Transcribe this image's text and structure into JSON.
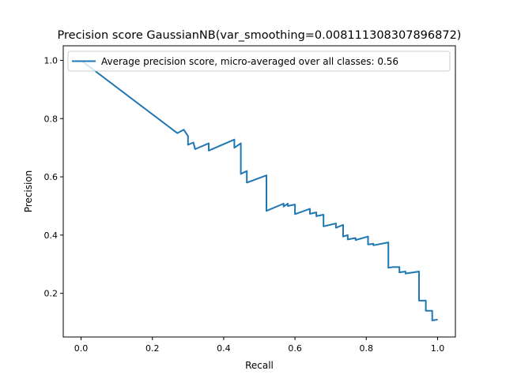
{
  "chart_data": {
    "type": "line",
    "title": "Precision score GaussianNB(var_smoothing=0.008111308307896872)",
    "xlabel": "Recall",
    "ylabel": "Precision",
    "xlim": [
      -0.05,
      1.05
    ],
    "ylim": [
      0.05,
      1.05
    ],
    "xticks": [
      0.0,
      0.2,
      0.4,
      0.6,
      0.8,
      1.0
    ],
    "xtick_labels": [
      "0.0",
      "0.2",
      "0.4",
      "0.6",
      "0.8",
      "1.0"
    ],
    "yticks": [
      0.2,
      0.4,
      0.6,
      0.8,
      1.0
    ],
    "ytick_labels": [
      "0.2",
      "0.4",
      "0.6",
      "0.8",
      "1.0"
    ],
    "grid": false,
    "legend_position": "top-right",
    "series": [
      {
        "name": "Average precision score, micro-averaged over all classes: 0.56",
        "color": "#1f77b4",
        "points": [
          [
            0.0,
            1.0
          ],
          [
            0.27,
            0.75
          ],
          [
            0.288,
            0.762
          ],
          [
            0.3,
            0.74
          ],
          [
            0.3,
            0.71
          ],
          [
            0.315,
            0.718
          ],
          [
            0.32,
            0.695
          ],
          [
            0.358,
            0.715
          ],
          [
            0.358,
            0.69
          ],
          [
            0.43,
            0.728
          ],
          [
            0.43,
            0.7
          ],
          [
            0.448,
            0.715
          ],
          [
            0.448,
            0.61
          ],
          [
            0.465,
            0.62
          ],
          [
            0.465,
            0.58
          ],
          [
            0.52,
            0.605
          ],
          [
            0.52,
            0.483
          ],
          [
            0.568,
            0.508
          ],
          [
            0.568,
            0.498
          ],
          [
            0.58,
            0.508
          ],
          [
            0.58,
            0.5
          ],
          [
            0.6,
            0.505
          ],
          [
            0.6,
            0.472
          ],
          [
            0.642,
            0.49
          ],
          [
            0.642,
            0.473
          ],
          [
            0.66,
            0.478
          ],
          [
            0.66,
            0.465
          ],
          [
            0.68,
            0.47
          ],
          [
            0.68,
            0.43
          ],
          [
            0.715,
            0.44
          ],
          [
            0.715,
            0.425
          ],
          [
            0.735,
            0.435
          ],
          [
            0.735,
            0.395
          ],
          [
            0.748,
            0.4
          ],
          [
            0.748,
            0.385
          ],
          [
            0.77,
            0.39
          ],
          [
            0.77,
            0.383
          ],
          [
            0.805,
            0.395
          ],
          [
            0.805,
            0.368
          ],
          [
            0.82,
            0.37
          ],
          [
            0.82,
            0.365
          ],
          [
            0.862,
            0.375
          ],
          [
            0.862,
            0.288
          ],
          [
            0.875,
            0.29
          ],
          [
            0.875,
            0.29
          ],
          [
            0.893,
            0.29
          ],
          [
            0.893,
            0.272
          ],
          [
            0.91,
            0.275
          ],
          [
            0.91,
            0.268
          ],
          [
            0.948,
            0.275
          ],
          [
            0.948,
            0.175
          ],
          [
            0.967,
            0.175
          ],
          [
            0.967,
            0.14
          ],
          [
            0.985,
            0.14
          ],
          [
            0.985,
            0.107
          ],
          [
            1.0,
            0.11
          ]
        ]
      }
    ]
  }
}
